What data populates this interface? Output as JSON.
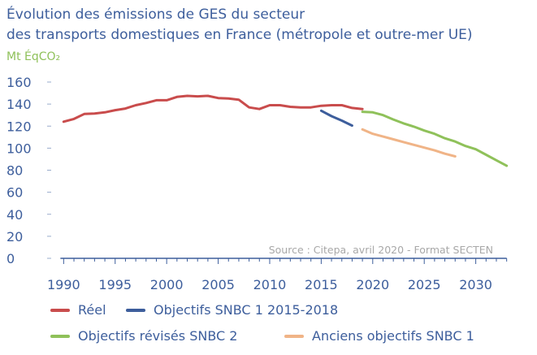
{
  "chart_data": {
    "type": "line",
    "title_line1": "Évolution des émissions de GES du secteur",
    "title_line2": "des transports domestiques en France (métropole et outre-mer UE)",
    "ylabel": "Mt ÉqCO₂",
    "ylim": [
      0,
      160
    ],
    "yticks": [
      "0",
      "20",
      "40",
      "60",
      "80",
      "100",
      "120",
      "140",
      "160"
    ],
    "xlim": [
      1989.5,
      2033.5
    ],
    "xticks": [
      "1990",
      "1995",
      "2000",
      "2005",
      "2010",
      "2015",
      "2020",
      "2025",
      "2030"
    ],
    "grid": false,
    "source": "Source : Citepa, avril 2020 - Format SECTEN",
    "legend_position": "bottom",
    "series": [
      {
        "name": "Réel",
        "color": "#c94c4c",
        "x": [
          1990,
          1991,
          1992,
          1993,
          1994,
          1995,
          1996,
          1997,
          1998,
          1999,
          2000,
          2001,
          2002,
          2003,
          2004,
          2005,
          2006,
          2007,
          2008,
          2009,
          2010,
          2011,
          2012,
          2013,
          2014,
          2015,
          2016,
          2017,
          2018,
          2019
        ],
        "y": [
          124,
          126.5,
          131,
          131.5,
          132.5,
          134.5,
          136,
          139,
          141,
          143.5,
          143.5,
          146.5,
          147.5,
          147,
          147.5,
          145.5,
          145,
          144,
          137,
          135.5,
          139,
          139,
          137.5,
          137,
          137,
          138.5,
          139,
          139,
          136.5,
          135.5
        ]
      },
      {
        "name": "Objectifs SNBC 1 2015-2018",
        "color": "#3d5e9c",
        "x": [
          2015,
          2016,
          2017,
          2018
        ],
        "y": [
          134,
          129,
          125,
          120.5
        ]
      },
      {
        "name": "Objectifs révisés SNBC 2",
        "color": "#8fc15a",
        "x": [
          2019,
          2020,
          2021,
          2022,
          2023,
          2024,
          2025,
          2026,
          2027,
          2028,
          2029,
          2030,
          2031,
          2032,
          2033
        ],
        "y": [
          133,
          132.5,
          130,
          126,
          122.5,
          119.5,
          116,
          113,
          109,
          106,
          102,
          99,
          94,
          89,
          84
        ]
      },
      {
        "name": "Anciens objectifs SNBC 1",
        "color": "#f0b487",
        "x": [
          2019,
          2020,
          2021,
          2022,
          2023,
          2024,
          2025,
          2026,
          2027,
          2028
        ],
        "y": [
          117,
          113,
          110.5,
          108,
          105.5,
          103,
          100.5,
          98,
          95,
          92.5
        ]
      }
    ]
  }
}
